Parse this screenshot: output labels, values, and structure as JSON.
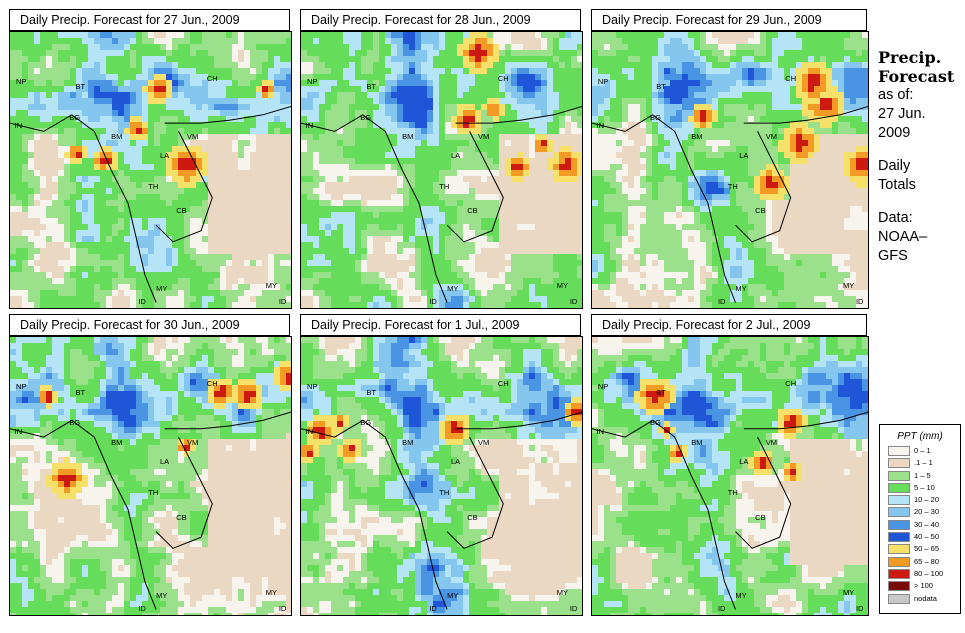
{
  "panels": [
    {
      "title": "Daily Precip. Forecast for  27 Jun., 2009",
      "seed": 11
    },
    {
      "title": "Daily Precip. Forecast for  28 Jun., 2009",
      "seed": 23
    },
    {
      "title": "Daily Precip. Forecast for  29 Jun., 2009",
      "seed": 37
    },
    {
      "title": "Daily Precip. Forecast for  30 Jun., 2009",
      "seed": 41
    },
    {
      "title": "Daily Precip. Forecast for  1 Jul., 2009",
      "seed": 53
    },
    {
      "title": "Daily Precip. Forecast for  2 Jul., 2009",
      "seed": 67
    }
  ],
  "map_labels": [
    "NP",
    "BT",
    "BG",
    "IN",
    "CH",
    "BM",
    "VM",
    "LA",
    "TH",
    "CB",
    "MY",
    "ID",
    "MY",
    "ID"
  ],
  "sidebar": {
    "title_line1": "Precip.",
    "title_line2": "Forecast",
    "asof": "as of:",
    "date_line1": "27 Jun.",
    "date_line2": "2009",
    "period_line1": "Daily",
    "period_line2": "Totals",
    "data_line1": "Data:",
    "data_line2": "NOAA–",
    "data_line3": "GFS"
  },
  "legend": {
    "title": "PPT (mm)",
    "items": [
      {
        "label": "0 – 1",
        "color": "#f7f4ee"
      },
      {
        "label": ".1 – 1",
        "color": "#ead8c3"
      },
      {
        "label": "1 – 5",
        "color": "#9be08b"
      },
      {
        "label": "5 – 10",
        "color": "#66dd5a"
      },
      {
        "label": "10 – 20",
        "color": "#b4e4f6"
      },
      {
        "label": "20 – 30",
        "color": "#84c6ee"
      },
      {
        "label": "30 – 40",
        "color": "#4a94e4"
      },
      {
        "label": "40 – 50",
        "color": "#1f56d8"
      },
      {
        "label": "50 – 65",
        "color": "#f5e06a"
      },
      {
        "label": "65 – 80",
        "color": "#f39a24"
      },
      {
        "label": "80 – 100",
        "color": "#cc1a10"
      },
      {
        "label": "> 100",
        "color": "#7a0c08"
      },
      {
        "label": "nodata",
        "color": "#c8c8c8"
      }
    ]
  }
}
